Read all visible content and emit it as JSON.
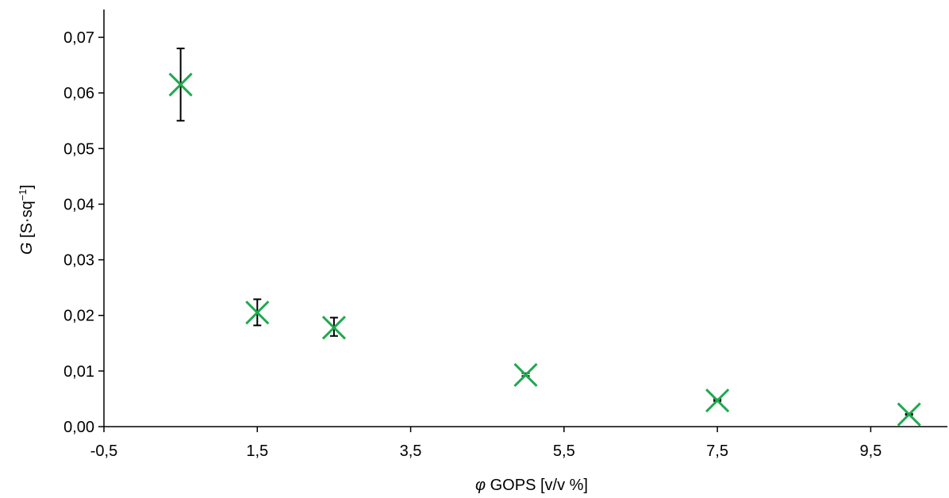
{
  "chart_data": {
    "type": "scatter",
    "title": "",
    "xlabel": {
      "symbol": "φ",
      "text": " GOPS [v/v %]"
    },
    "ylabel": {
      "symbol": "G",
      "text": " [S·sq",
      "superscript": "−1",
      "suffix": "]"
    },
    "xlim": [
      -0.5,
      10.5
    ],
    "ylim": [
      0,
      0.075
    ],
    "x_ticks": [
      -0.5,
      1.5,
      3.5,
      5.5,
      7.5,
      9.5
    ],
    "x_tick_labels": [
      "-0,5",
      "1,5",
      "3,5",
      "5,5",
      "7,5",
      "9,5"
    ],
    "y_ticks": [
      0,
      0.01,
      0.02,
      0.03,
      0.04,
      0.05,
      0.06,
      0.07
    ],
    "y_tick_labels": [
      "0,00",
      "0,01",
      "0,02",
      "0,03",
      "0,04",
      "0,05",
      "0,06",
      "0,07"
    ],
    "grid": false,
    "legend": "none",
    "series": [
      {
        "marker": "x",
        "color": "#1fa94f",
        "error_bar_color": "#000000",
        "points": [
          {
            "x": 0.5,
            "y": 0.0615,
            "err_low": 0.055,
            "err_high": 0.068
          },
          {
            "x": 1.5,
            "y": 0.0205,
            "err_low": 0.0182,
            "err_high": 0.0229
          },
          {
            "x": 2.5,
            "y": 0.0178,
            "err_low": 0.0163,
            "err_high": 0.0196
          },
          {
            "x": 5.0,
            "y": 0.0093,
            "err_low": 0.0091,
            "err_high": 0.0096
          },
          {
            "x": 7.5,
            "y": 0.0047,
            "err_low": 0.0046,
            "err_high": 0.0049
          },
          {
            "x": 10.0,
            "y": 0.0022,
            "err_low": 0.0021,
            "err_high": 0.0023
          }
        ]
      }
    ]
  }
}
